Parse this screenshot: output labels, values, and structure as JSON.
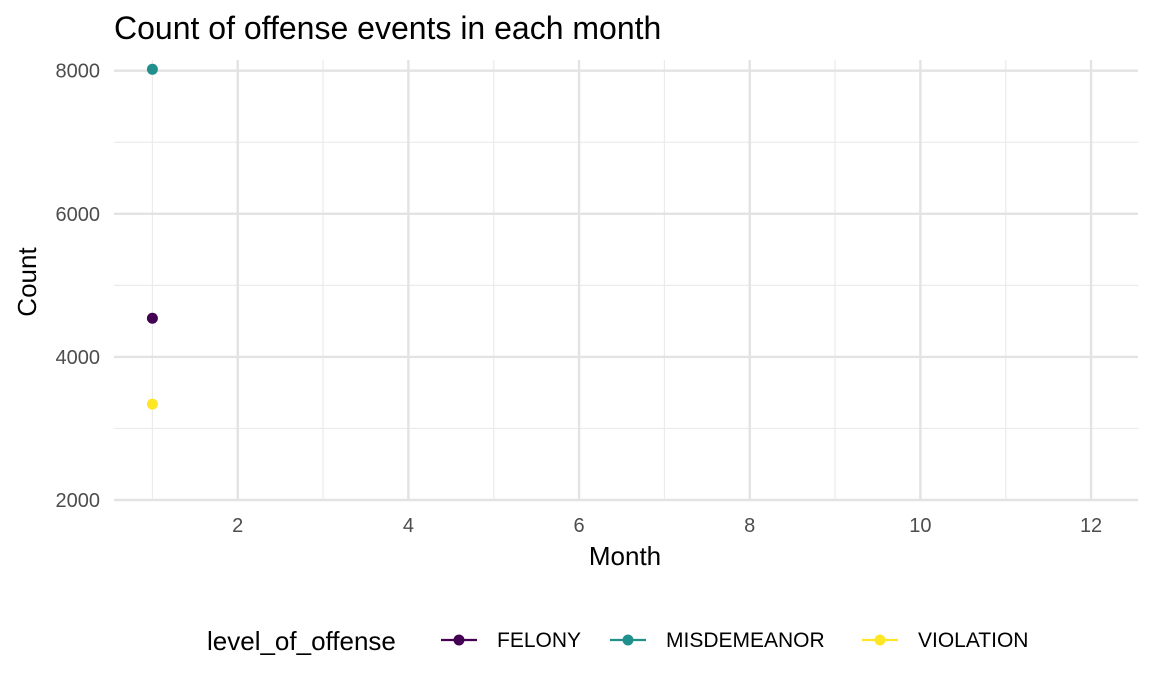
{
  "chart_data": {
    "type": "scatter",
    "title": "Count of offense events in each month",
    "xlabel": "Month",
    "ylabel": "Count",
    "xlim": [
      0.55,
      12.55
    ],
    "ylim": [
      2000,
      8150
    ],
    "x_ticks": [
      2,
      4,
      6,
      8,
      10,
      12
    ],
    "y_ticks": [
      2000,
      4000,
      6000,
      8000
    ],
    "grid": true,
    "legend": {
      "title": "level_of_offense",
      "position": "bottom"
    },
    "series": [
      {
        "name": "FELONY",
        "color": "#440154",
        "x": [
          1
        ],
        "values": [
          4540
        ]
      },
      {
        "name": "MISDEMEANOR",
        "color": "#21908C",
        "x": [
          1
        ],
        "values": [
          8020
        ]
      },
      {
        "name": "VIOLATION",
        "color": "#FDE725",
        "x": [
          1
        ],
        "values": [
          3340
        ]
      }
    ]
  }
}
